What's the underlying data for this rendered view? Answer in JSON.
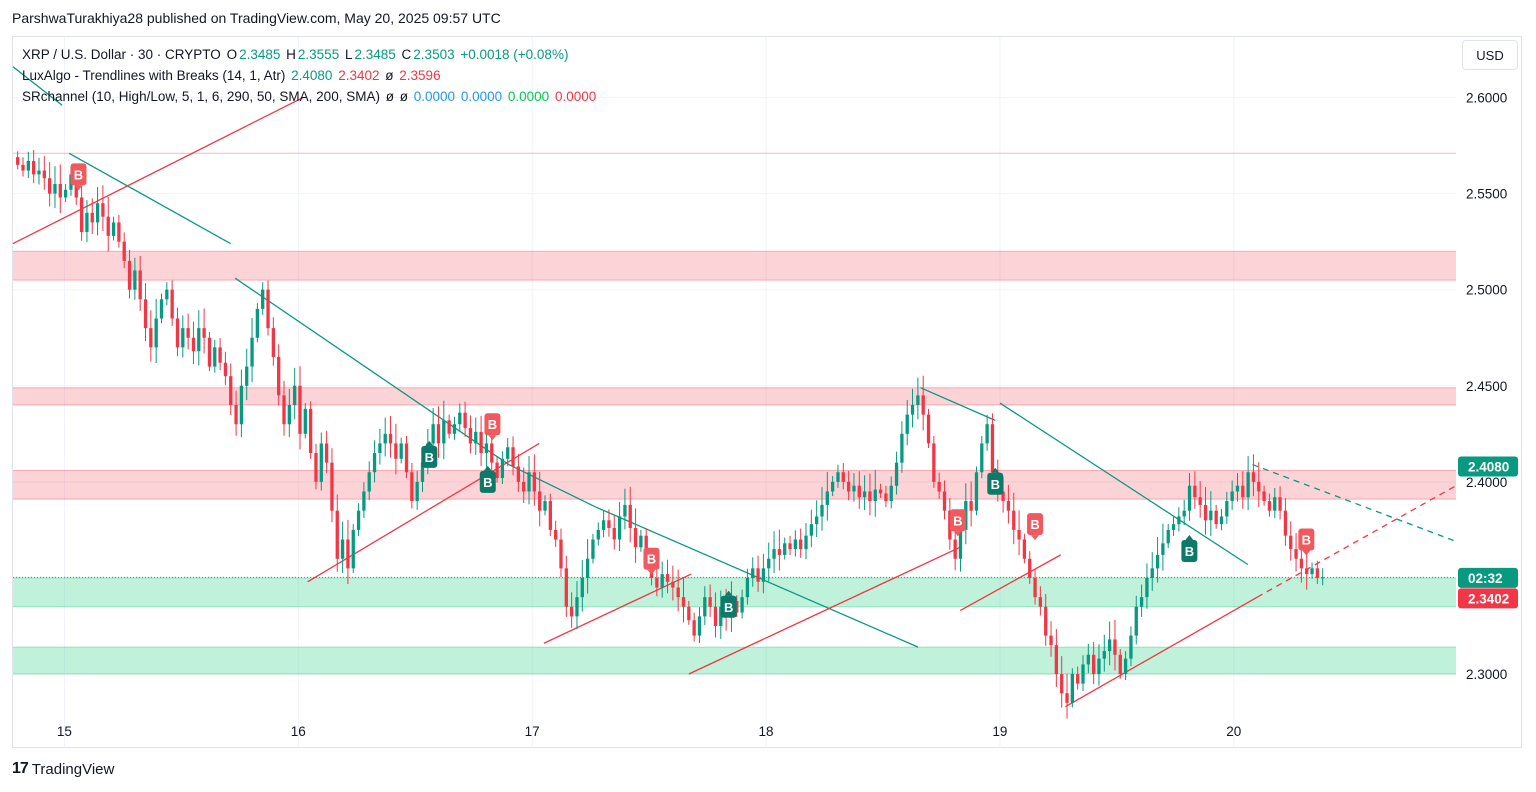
{
  "header": {
    "title": "ParshwaTurakhiya28 published on TradingView.com, May 20, 2025 09:57 UTC"
  },
  "legend": {
    "symbol": "XRP / U.S. Dollar · 30 · CRYPTO",
    "open_label": "O",
    "open": "2.3485",
    "high_label": "H",
    "high": "2.3555",
    "low_label": "L",
    "low": "2.3485",
    "close_label": "C",
    "close": "2.3503",
    "change": "+0.0018 (+0.08%)",
    "luxalgo_name": "LuxAlgo - Trendlines with Breaks (14, 1, Atr)",
    "luxalgo_v1": "2.4080",
    "luxalgo_v2": "2.3402",
    "luxalgo_v3": "ø",
    "luxalgo_v4": "2.3596",
    "sr_name": "SRchannel (10, High/Low, 5, 1, 6, 290, 50, SMA, 200, SMA)",
    "sr_v1": "ø",
    "sr_v2": "ø",
    "sr_v3": "0.0000",
    "sr_v4": "0.0000",
    "sr_v5": "0.0000",
    "sr_v6": "0.0000"
  },
  "currency_button": "USD",
  "footer": {
    "brand_mark": "17",
    "brand_text": "TradingView"
  },
  "chart_data": {
    "type": "candlestick",
    "y_ticks": [
      "2.6000",
      "2.5500",
      "2.5000",
      "2.4500",
      "2.4000",
      "2.3000"
    ],
    "x_ticks": [
      {
        "label": "15",
        "x": 15.0
      },
      {
        "label": "16",
        "x": 16.0
      },
      {
        "label": "17",
        "x": 17.0
      },
      {
        "label": "18",
        "x": 18.0
      },
      {
        "label": "19",
        "x": 19.0
      },
      {
        "label": "20",
        "x": 20.0
      }
    ],
    "y_range": [
      2.2615,
      2.6315
    ],
    "x_range": [
      14.78,
      20.95
    ],
    "price_labels": [
      {
        "text": "2.4080",
        "value": 2.408,
        "color": "#089981"
      },
      {
        "text": "02:32",
        "value": 2.35,
        "color": "#089981"
      },
      {
        "text": "2.3402",
        "value": 2.3402,
        "color": "#f23645"
      }
    ],
    "last_price": 2.3503,
    "zones": [
      {
        "from": 2.505,
        "to": 2.52,
        "color": "rgba(242,54,69,0.22)"
      },
      {
        "from": 2.44,
        "to": 2.449,
        "color": "rgba(242,54,69,0.22)"
      },
      {
        "from": 2.391,
        "to": 2.406,
        "color": "rgba(242,54,69,0.22)"
      },
      {
        "from": 2.335,
        "to": 2.35,
        "color": "rgba(0,200,110,0.25)"
      },
      {
        "from": 2.3,
        "to": 2.314,
        "color": "rgba(0,200,110,0.25)"
      }
    ],
    "hlines": [
      {
        "value": 2.571,
        "color": "rgba(242,54,69,0.35)"
      }
    ],
    "trendlines": [
      {
        "x1": 14.78,
        "y1": 2.616,
        "x2": 14.99,
        "y2": 2.596,
        "color": "#089981",
        "dashed": false
      },
      {
        "x1": 15.02,
        "y1": 2.571,
        "x2": 15.71,
        "y2": 2.524,
        "color": "#089981",
        "dashed": false
      },
      {
        "x1": 15.73,
        "y1": 2.506,
        "x2": 16.9,
        "y2": 2.409,
        "color": "#089981",
        "dashed": false
      },
      {
        "x1": 16.9,
        "y1": 2.409,
        "x2": 17.27,
        "y2": 2.387,
        "color": "#089981",
        "dashed": false
      },
      {
        "x1": 17.27,
        "y1": 2.387,
        "x2": 18.65,
        "y2": 2.314,
        "color": "#089981",
        "dashed": false
      },
      {
        "x1": 18.66,
        "y1": 2.449,
        "x2": 18.98,
        "y2": 2.432,
        "color": "#089981",
        "dashed": false
      },
      {
        "x1": 19.0,
        "y1": 2.441,
        "x2": 20.06,
        "y2": 2.357,
        "color": "#089981",
        "dashed": false
      },
      {
        "x1": 20.08,
        "y1": 2.409,
        "x2": 20.95,
        "y2": 2.369,
        "color": "#089981",
        "dashed": true
      },
      {
        "x1": 14.78,
        "y1": 2.524,
        "x2": 16.02,
        "y2": 2.6,
        "color": "#f23645",
        "dashed": false
      },
      {
        "x1": 16.04,
        "y1": 2.348,
        "x2": 17.03,
        "y2": 2.42,
        "color": "#f23645",
        "dashed": false
      },
      {
        "x1": 17.05,
        "y1": 2.316,
        "x2": 17.68,
        "y2": 2.352,
        "color": "#f23645",
        "dashed": false
      },
      {
        "x1": 17.67,
        "y1": 2.3,
        "x2": 18.83,
        "y2": 2.366,
        "color": "#f23645",
        "dashed": false
      },
      {
        "x1": 18.83,
        "y1": 2.333,
        "x2": 19.26,
        "y2": 2.362,
        "color": "#f23645",
        "dashed": false
      },
      {
        "x1": 19.28,
        "y1": 2.283,
        "x2": 20.1,
        "y2": 2.34,
        "color": "#f23645",
        "dashed": false
      },
      {
        "x1": 20.1,
        "y1": 2.34,
        "x2": 20.95,
        "y2": 2.398,
        "color": "#f23645",
        "dashed": true
      }
    ],
    "signals": [
      {
        "label": "B",
        "x": 15.06,
        "y": 2.56,
        "kind": "sell"
      },
      {
        "label": "B",
        "x": 16.56,
        "y": 2.413,
        "kind": "buy"
      },
      {
        "label": "B",
        "x": 16.83,
        "y": 2.43,
        "kind": "sell"
      },
      {
        "label": "B",
        "x": 16.81,
        "y": 2.4,
        "kind": "buy"
      },
      {
        "label": "B",
        "x": 17.51,
        "y": 2.36,
        "kind": "sell"
      },
      {
        "label": "B",
        "x": 17.84,
        "y": 2.335,
        "kind": "buy"
      },
      {
        "label": "B",
        "x": 18.82,
        "y": 2.38,
        "kind": "sell"
      },
      {
        "label": "B",
        "x": 18.98,
        "y": 2.399,
        "kind": "buy"
      },
      {
        "label": "B",
        "x": 19.15,
        "y": 2.378,
        "kind": "sell"
      },
      {
        "label": "B",
        "x": 19.81,
        "y": 2.364,
        "kind": "buy"
      },
      {
        "label": "B",
        "x": 20.31,
        "y": 2.37,
        "kind": "sell"
      }
    ],
    "closes": [
      2.565,
      2.562,
      2.567,
      2.56,
      2.562,
      2.558,
      2.55,
      2.555,
      2.548,
      2.552,
      2.56,
      2.548,
      2.53,
      2.54,
      2.535,
      2.545,
      2.538,
      2.528,
      2.535,
      2.525,
      2.515,
      2.5,
      2.51,
      2.495,
      2.48,
      2.47,
      2.485,
      2.495,
      2.5,
      2.485,
      2.47,
      2.48,
      2.475,
      2.468,
      2.48,
      2.475,
      2.46,
      2.47,
      2.462,
      2.455,
      2.44,
      2.43,
      2.45,
      2.46,
      2.475,
      2.49,
      2.5,
      2.48,
      2.465,
      2.445,
      2.43,
      2.44,
      2.45,
      2.425,
      2.438,
      2.415,
      2.4,
      2.42,
      2.41,
      2.385,
      2.36,
      2.37,
      2.355,
      2.375,
      2.385,
      2.395,
      2.405,
      2.415,
      2.42,
      2.425,
      2.42,
      2.412,
      2.42,
      2.405,
      2.39,
      2.4,
      2.41,
      2.42,
      2.43,
      2.42,
      2.432,
      2.425,
      2.43,
      2.436,
      2.428,
      2.42,
      2.426,
      2.415,
      2.42,
      2.41,
      2.402,
      2.412,
      2.418,
      2.408,
      2.4,
      2.395,
      2.405,
      2.395,
      2.385,
      2.39,
      2.375,
      2.37,
      2.355,
      2.335,
      2.33,
      2.34,
      2.35,
      2.36,
      2.37,
      2.375,
      2.38,
      2.376,
      2.37,
      2.382,
      2.388,
      2.376,
      2.366,
      2.372,
      2.36,
      2.35,
      2.345,
      2.352,
      2.348,
      2.345,
      2.34,
      2.335,
      2.328,
      2.32,
      2.33,
      2.34,
      2.335,
      2.325,
      2.335,
      2.33,
      2.338,
      2.332,
      2.34,
      2.35,
      2.355,
      2.348,
      2.355,
      2.36,
      2.365,
      2.362,
      2.368,
      2.365,
      2.37,
      2.365,
      2.372,
      2.378,
      2.382,
      2.388,
      2.395,
      2.4,
      2.405,
      2.4,
      2.395,
      2.398,
      2.392,
      2.395,
      2.39,
      2.396,
      2.394,
      2.39,
      2.398,
      2.41,
      2.425,
      2.435,
      2.44,
      2.445,
      2.435,
      2.42,
      2.4,
      2.395,
      2.385,
      2.37,
      2.36,
      2.375,
      2.39,
      2.385,
      2.405,
      2.42,
      2.43,
      2.405,
      2.395,
      2.39,
      2.385,
      2.375,
      2.37,
      2.36,
      2.35,
      2.34,
      2.335,
      2.32,
      2.315,
      2.3,
      2.29,
      2.285,
      2.3,
      2.295,
      2.305,
      2.31,
      2.3,
      2.308,
      2.312,
      2.318,
      2.31,
      2.3,
      2.308,
      2.32,
      2.335,
      2.34,
      2.35,
      2.355,
      2.362,
      2.368,
      2.375,
      2.378,
      2.382,
      2.385,
      2.398,
      2.392,
      2.388,
      2.38,
      2.385,
      2.378,
      2.382,
      2.39,
      2.395,
      2.398,
      2.392,
      2.405,
      2.4,
      2.395,
      2.39,
      2.385,
      2.392,
      2.385,
      2.372,
      2.365,
      2.36,
      2.355,
      2.352,
      2.355,
      2.35,
      2.3503
    ]
  }
}
